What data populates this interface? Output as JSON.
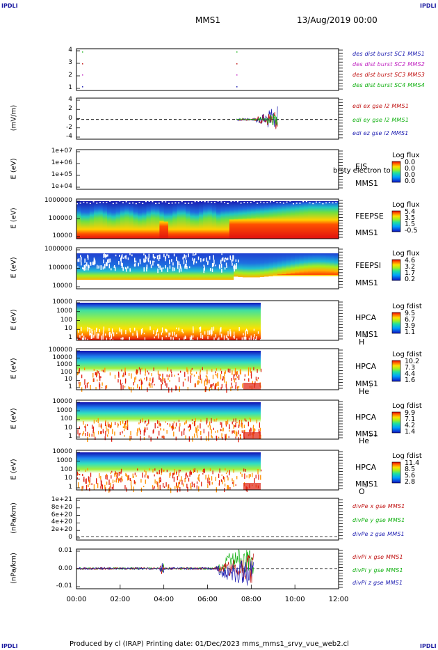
{
  "header": {
    "left_tag": "IPDLI",
    "right_tag": "IPDLI",
    "title": "MMS1",
    "date": "13/Aug/2019 00:00"
  },
  "footer": {
    "left_tag": "IPDLI",
    "right_tag": "IPDLI",
    "text": "Produced by cl (IRAP)   Printing date: 01/Dec/2023   mms_mms1_srvy_vue_web2.cl"
  },
  "x_ticks": [
    "00:00",
    "02:00",
    "04:00",
    "06:00",
    "08:00",
    "10:00",
    "12:00"
  ],
  "chart_data": [
    {
      "type": "scatter",
      "panel": "burst",
      "yticks": [
        "4",
        "3",
        "2",
        "1"
      ],
      "legend": [
        {
          "label": "des dist burst SC1 MMS1",
          "color": "#1a1ab0"
        },
        {
          "label": "des dist burst SC2 MMS2",
          "color": "#c020c0"
        },
        {
          "label": "des dist burst SC3 MMS3",
          "color": "#c01010"
        },
        {
          "label": "des dist burst SC4 MMS4",
          "color": "#10b010"
        }
      ]
    },
    {
      "type": "line",
      "panel": "edi",
      "ylabel": "(mV/m)",
      "yticks": [
        "4",
        "2",
        "0",
        "-2",
        "-4"
      ],
      "legend": [
        {
          "label": "edi ex gse l2 MMS1",
          "color": "#c01010"
        },
        {
          "label": "edi ey gse l2 MMS1",
          "color": "#10b010"
        },
        {
          "label": "edi ez gse l2 MMS1",
          "color": "#1a1ab0"
        }
      ]
    },
    {
      "type": "heatmap",
      "panel": "eis",
      "ylabel": "E (eV)",
      "yticks": [
        "1e+07",
        "1e+06",
        "1e+05",
        "1e+04"
      ],
      "side_labels": [
        "EIS",
        "MMS1"
      ],
      "overlay": "brsty electron to",
      "colorbar": {
        "title": "Log flux",
        "values": [
          "0.0",
          "0.0",
          "0.0",
          "0.0"
        ]
      }
    },
    {
      "type": "heatmap",
      "panel": "feepse",
      "ylabel": "E (eV)",
      "yticks": [
        "1000000",
        "100000",
        "10000"
      ],
      "side_labels": [
        "FEEPSE",
        "MMS1"
      ],
      "colorbar": {
        "title": "Log flux",
        "values": [
          "5.4",
          "3.5",
          "1.5",
          "-0.5"
        ]
      }
    },
    {
      "type": "heatmap",
      "panel": "feepsi",
      "ylabel": "E (eV)",
      "yticks": [
        "1000000",
        "100000",
        "10000"
      ],
      "side_labels": [
        "FEEPSI",
        "MMS1"
      ],
      "colorbar": {
        "title": "Log flux",
        "values": [
          "4.6",
          "3.2",
          "1.7",
          "0.2"
        ]
      }
    },
    {
      "type": "heatmap",
      "panel": "hpca-h",
      "ylabel": "E (eV)",
      "yticks": [
        "10000",
        "1000",
        "100",
        "10",
        "1"
      ],
      "side_labels": [
        "HPCA",
        "MMS1",
        "H",
        "+"
      ],
      "colorbar": {
        "title": "Log fdist",
        "values": [
          "9.5",
          "6.7",
          "3.9",
          "1.1"
        ]
      }
    },
    {
      "type": "heatmap",
      "panel": "hpca-he",
      "ylabel": "E (eV)",
      "yticks": [
        "100000",
        "10000",
        "1000",
        "100",
        "10",
        "1"
      ],
      "side_labels": [
        "HPCA",
        "MMS1",
        "He",
        "+"
      ],
      "colorbar": {
        "title": "Log fdist",
        "values": [
          "10.2",
          "7.3",
          "4.4",
          "1.6"
        ]
      }
    },
    {
      "type": "heatmap",
      "panel": "hpca-hepp",
      "ylabel": "E (eV)",
      "yticks": [
        "10000",
        "1000",
        "100",
        "10",
        "1"
      ],
      "side_labels": [
        "HPCA",
        "MMS1",
        "He",
        "++"
      ],
      "colorbar": {
        "title": "Log fdist",
        "values": [
          "9.9",
          "7.1",
          "4.2",
          "1.4"
        ]
      }
    },
    {
      "type": "heatmap",
      "panel": "hpca-o",
      "ylabel": "E (eV)",
      "yticks": [
        "10000",
        "1000",
        "100",
        "10",
        "1"
      ],
      "side_labels": [
        "HPCA",
        "MMS1",
        "O",
        "+"
      ],
      "colorbar": {
        "title": "Log fdist",
        "values": [
          "11.4",
          "8.5",
          "5.6",
          "2.8"
        ]
      }
    },
    {
      "type": "line",
      "panel": "divpe",
      "ylabel": "(nPa/km)",
      "yticks": [
        "1e+21",
        "8e+20",
        "6e+20",
        "4e+20",
        "2e+20",
        "0"
      ],
      "legend": [
        {
          "label": "divPe x gse MMS1",
          "color": "#c01010"
        },
        {
          "label": "divPe y gse MMS1",
          "color": "#10b010"
        },
        {
          "label": "divPe z gse MMS1",
          "color": "#1a1ab0"
        }
      ]
    },
    {
      "type": "line",
      "panel": "divpi",
      "ylabel": "(nPa/km)",
      "yticks": [
        "0.01",
        "0.00",
        "-0.01"
      ],
      "legend": [
        {
          "label": "divPi x gse MMS1",
          "color": "#c01010"
        },
        {
          "label": "divPi y gse MMS1",
          "color": "#10b010"
        },
        {
          "label": "divPi z gse MMS1",
          "color": "#1a1ab0"
        }
      ]
    }
  ]
}
